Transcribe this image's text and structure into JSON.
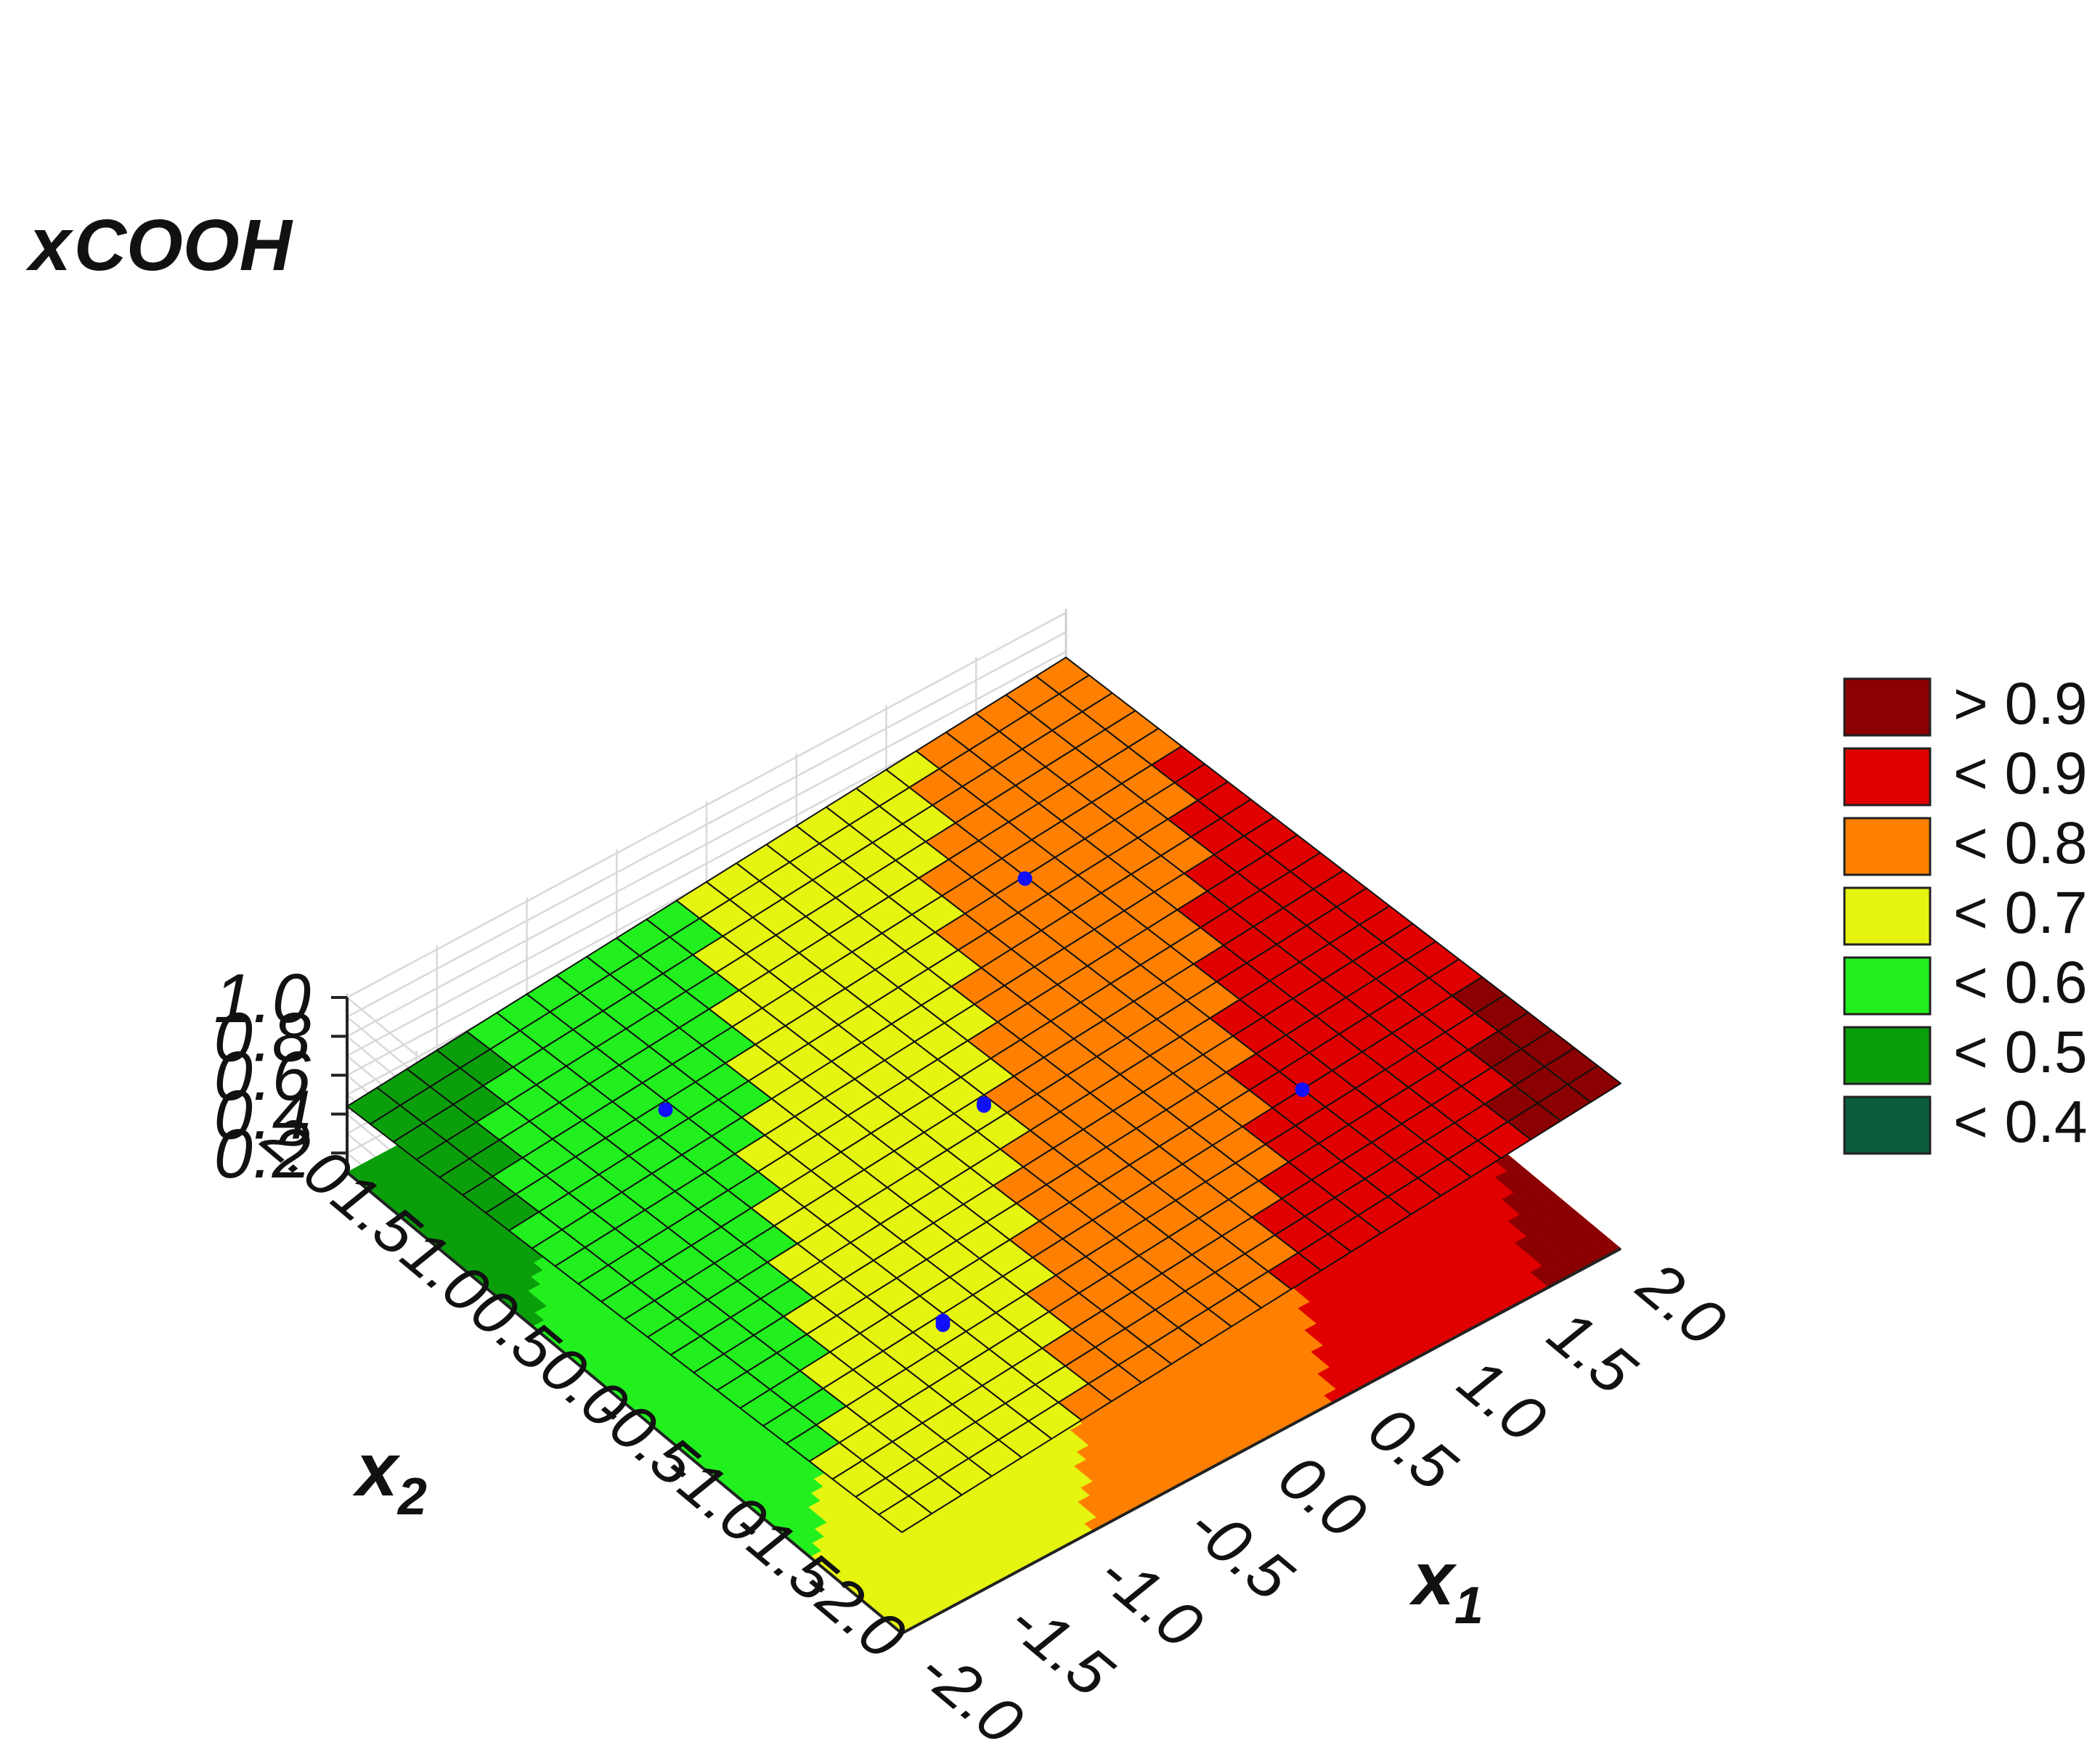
{
  "chart_data": {
    "type": "surface",
    "z_label_main": "x",
    "z_label_sub": "COOH",
    "x1_label_main": "x",
    "x1_label_sub": "1",
    "x2_label_main": "x",
    "x2_label_sub": "2",
    "x1_ticks": [
      "-2.0",
      "-1.5",
      "-1.0",
      "-0.5",
      "0.0",
      "0.5",
      "1.0",
      "1.5",
      "2.0"
    ],
    "x2_ticks": [
      "-2.0",
      "-1.5",
      "-1.0",
      "-0.5",
      "0.0",
      "0.5",
      "1.0",
      "1.5",
      "2.0"
    ],
    "z_ticks": [
      "0.2",
      "0.4",
      "0.6",
      "0.8",
      "1.0"
    ],
    "x1_range": [
      -2.0,
      2.0
    ],
    "x2_range": [
      -2.0,
      2.0
    ],
    "z_range": [
      0.1,
      1.0
    ],
    "surface_corners": [
      {
        "x1": -2.0,
        "x2": -2.0,
        "z": 0.62
      },
      {
        "x1": 2.0,
        "x2": -2.0,
        "z": 0.95
      },
      {
        "x1": 2.0,
        "x2": 2.0,
        "z": 0.77
      },
      {
        "x1": -2.0,
        "x2": 2.0,
        "z": 0.44
      }
    ],
    "experimental_points": [
      {
        "x1": -1.0,
        "x2": 1.0,
        "z": 0.52
      },
      {
        "x1": -1.0,
        "x2": -1.0,
        "z": 0.62
      },
      {
        "x1": 0.0,
        "x2": 0.0,
        "z": 0.65
      },
      {
        "x1": 0.0,
        "x2": 0.0,
        "z": 0.64
      },
      {
        "x1": -1.0,
        "x2": -1.0,
        "z": 0.6
      },
      {
        "x1": 1.0,
        "x2": 1.0,
        "z": 0.72
      },
      {
        "x1": 1.0,
        "x2": -1.0,
        "z": 0.82
      }
    ],
    "legend": [
      {
        "label": "> 0.9",
        "color": "#8b0000"
      },
      {
        "label": "< 0.9",
        "color": "#e00000"
      },
      {
        "label": "< 0.8",
        "color": "#ff8000"
      },
      {
        "label": "< 0.7",
        "color": "#e6f510"
      },
      {
        "label": "< 0.6",
        "color": "#22f01e"
      },
      {
        "label": "< 0.5",
        "color": "#0b9e0b"
      },
      {
        "label": "< 0.4",
        "color": "#0b5e3c"
      }
    ],
    "legend_placement": "right",
    "point_color": "#1010ff",
    "grid": true
  }
}
